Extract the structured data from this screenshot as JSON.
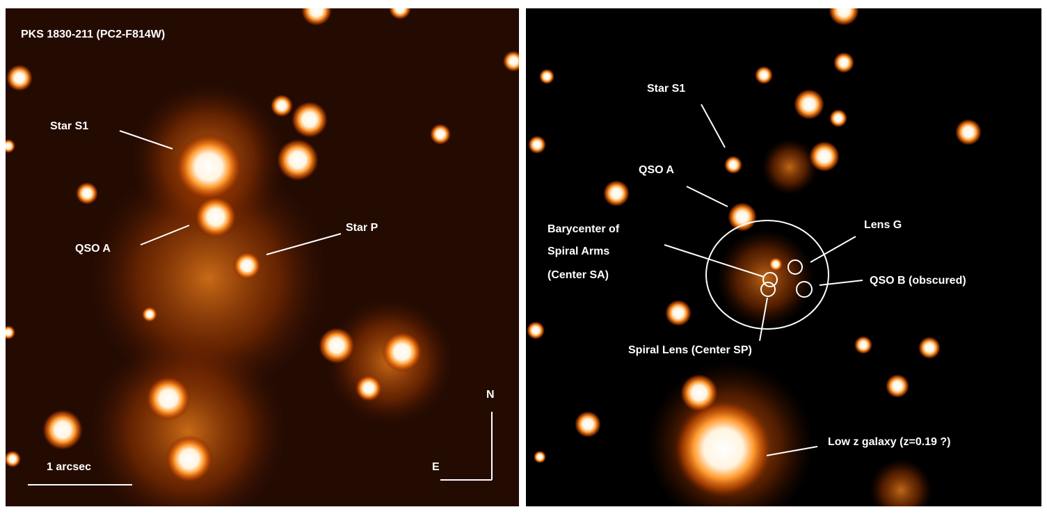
{
  "left_panel": {
    "title": "PKS 1830-211 (PC2-F814W)",
    "labels": [
      "Star S1",
      "QSO A",
      "Star P"
    ],
    "scale_bar": "1 arcsec",
    "compass": {
      "north": "N",
      "east": "E"
    }
  },
  "right_panel": {
    "labels": [
      "Star S1",
      "QSO A",
      "Lens G",
      "QSO B (obscured)",
      "Spiral Lens (Center SP)",
      "Low z galaxy (z=0.19 ?)"
    ],
    "barycenter_label": [
      "Barycenter of",
      "Spiral Arms",
      "(Center SA)"
    ]
  }
}
